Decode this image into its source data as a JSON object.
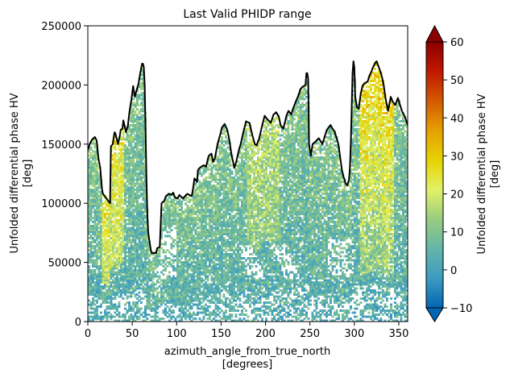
{
  "chart_data": {
    "type": "heatmap",
    "title": "Last Valid PHIDP range",
    "xlabel": "azimuth_angle_from_true_north",
    "xlabel_units": "[degrees]",
    "ylabel": "Unfolded differential phase HV",
    "ylabel_units": "[deg]",
    "xlim": [
      0,
      360
    ],
    "ylim": [
      0,
      250000
    ],
    "xticks": [
      0,
      50,
      100,
      150,
      200,
      250,
      300,
      350
    ],
    "xtick_labels": [
      "0",
      "50",
      "100",
      "150",
      "200",
      "250",
      "300",
      "350"
    ],
    "yticks": [
      0,
      50000,
      100000,
      150000,
      200000,
      250000
    ],
    "ytick_labels": [
      "0",
      "50000",
      "100000",
      "150000",
      "200000",
      "250000"
    ],
    "colorbar": {
      "label": "Unfolded differential phase HV",
      "units": "[deg]",
      "min": -10,
      "max": 60,
      "ticks": [
        -10,
        0,
        10,
        20,
        30,
        40,
        50,
        60
      ],
      "tick_labels": [
        "−10",
        "0",
        "10",
        "20",
        "30",
        "40",
        "50",
        "60"
      ],
      "extend": "both",
      "colormap": [
        "#0066b3",
        "#3d9bc1",
        "#63b5a8",
        "#99cc80",
        "#e2f266",
        "#e6d200",
        "#e6a000",
        "#d25a00",
        "#c01800",
        "#8b0000"
      ]
    },
    "range_line": {
      "name": "Last Valid PHIDP range",
      "color": "#000000",
      "x": [
        0,
        2,
        5,
        8,
        10,
        12,
        14,
        16,
        17,
        19,
        20,
        22,
        24,
        25,
        26,
        28,
        30,
        31,
        34,
        36,
        37,
        39,
        40,
        43,
        45,
        47,
        49,
        51,
        53,
        55,
        57,
        59,
        60,
        61,
        62,
        63,
        64,
        65,
        66,
        67,
        68,
        70,
        71,
        72,
        75,
        77,
        78,
        81,
        83,
        86,
        88,
        91,
        94,
        96,
        98,
        101,
        103,
        107,
        112,
        117,
        119,
        120,
        121,
        123,
        124,
        126,
        130,
        133,
        136,
        139,
        141,
        143,
        146,
        149,
        151,
        154,
        157,
        159,
        162,
        165,
        167,
        170,
        172,
        175,
        178,
        182,
        185,
        188,
        190,
        193,
        196,
        199,
        202,
        206,
        209,
        212,
        215,
        217,
        220,
        222,
        224,
        226,
        229,
        231,
        234,
        237,
        239,
        241,
        243,
        245,
        246,
        247,
        248,
        249,
        251,
        253,
        256,
        260,
        264,
        269,
        273,
        278,
        282,
        286,
        288,
        290,
        292,
        294,
        295,
        296,
        297,
        298,
        299,
        300,
        301,
        303,
        305,
        307,
        309,
        311,
        313,
        315,
        317,
        319,
        321,
        323,
        325,
        327,
        329,
        331,
        333,
        335,
        338,
        341,
        343,
        346,
        349,
        351,
        354,
        357,
        360
      ],
      "y": [
        145000,
        150000,
        154000,
        156000,
        153000,
        138000,
        130000,
        112000,
        108000,
        106000,
        105000,
        103000,
        101000,
        100000,
        148000,
        150000,
        160000,
        159000,
        150000,
        157000,
        162000,
        163000,
        170000,
        160000,
        165000,
        178000,
        187000,
        199000,
        190000,
        196000,
        201000,
        210000,
        214000,
        218000,
        218000,
        215000,
        200000,
        160000,
        120000,
        90000,
        75000,
        65000,
        60000,
        58000,
        58000,
        58000,
        62000,
        63000,
        100000,
        102000,
        106000,
        108000,
        107000,
        109000,
        105000,
        104000,
        107000,
        104000,
        108000,
        106000,
        115000,
        121000,
        120000,
        118000,
        128000,
        130000,
        132000,
        131000,
        140000,
        142000,
        135000,
        138000,
        150000,
        158000,
        164000,
        167000,
        162000,
        155000,
        140000,
        130000,
        135000,
        145000,
        150000,
        160000,
        169000,
        168000,
        158000,
        150000,
        149000,
        155000,
        165000,
        174000,
        171000,
        168000,
        175000,
        177000,
        173000,
        166000,
        163000,
        169000,
        175000,
        178000,
        175000,
        180000,
        186000,
        191000,
        196000,
        198000,
        199000,
        200000,
        210000,
        210000,
        205000,
        150000,
        140000,
        150000,
        152000,
        155000,
        150000,
        162000,
        166000,
        160000,
        150000,
        128000,
        122000,
        117000,
        115000,
        120000,
        130000,
        150000,
        180000,
        210000,
        220000,
        215000,
        190000,
        181000,
        180000,
        192000,
        199000,
        201000,
        202000,
        203000,
        208000,
        211000,
        215000,
        218000,
        220000,
        216000,
        212000,
        207000,
        200000,
        189000,
        178000,
        190000,
        186000,
        183000,
        189000,
        184000,
        177000,
        173000,
        166000
      ]
    }
  }
}
